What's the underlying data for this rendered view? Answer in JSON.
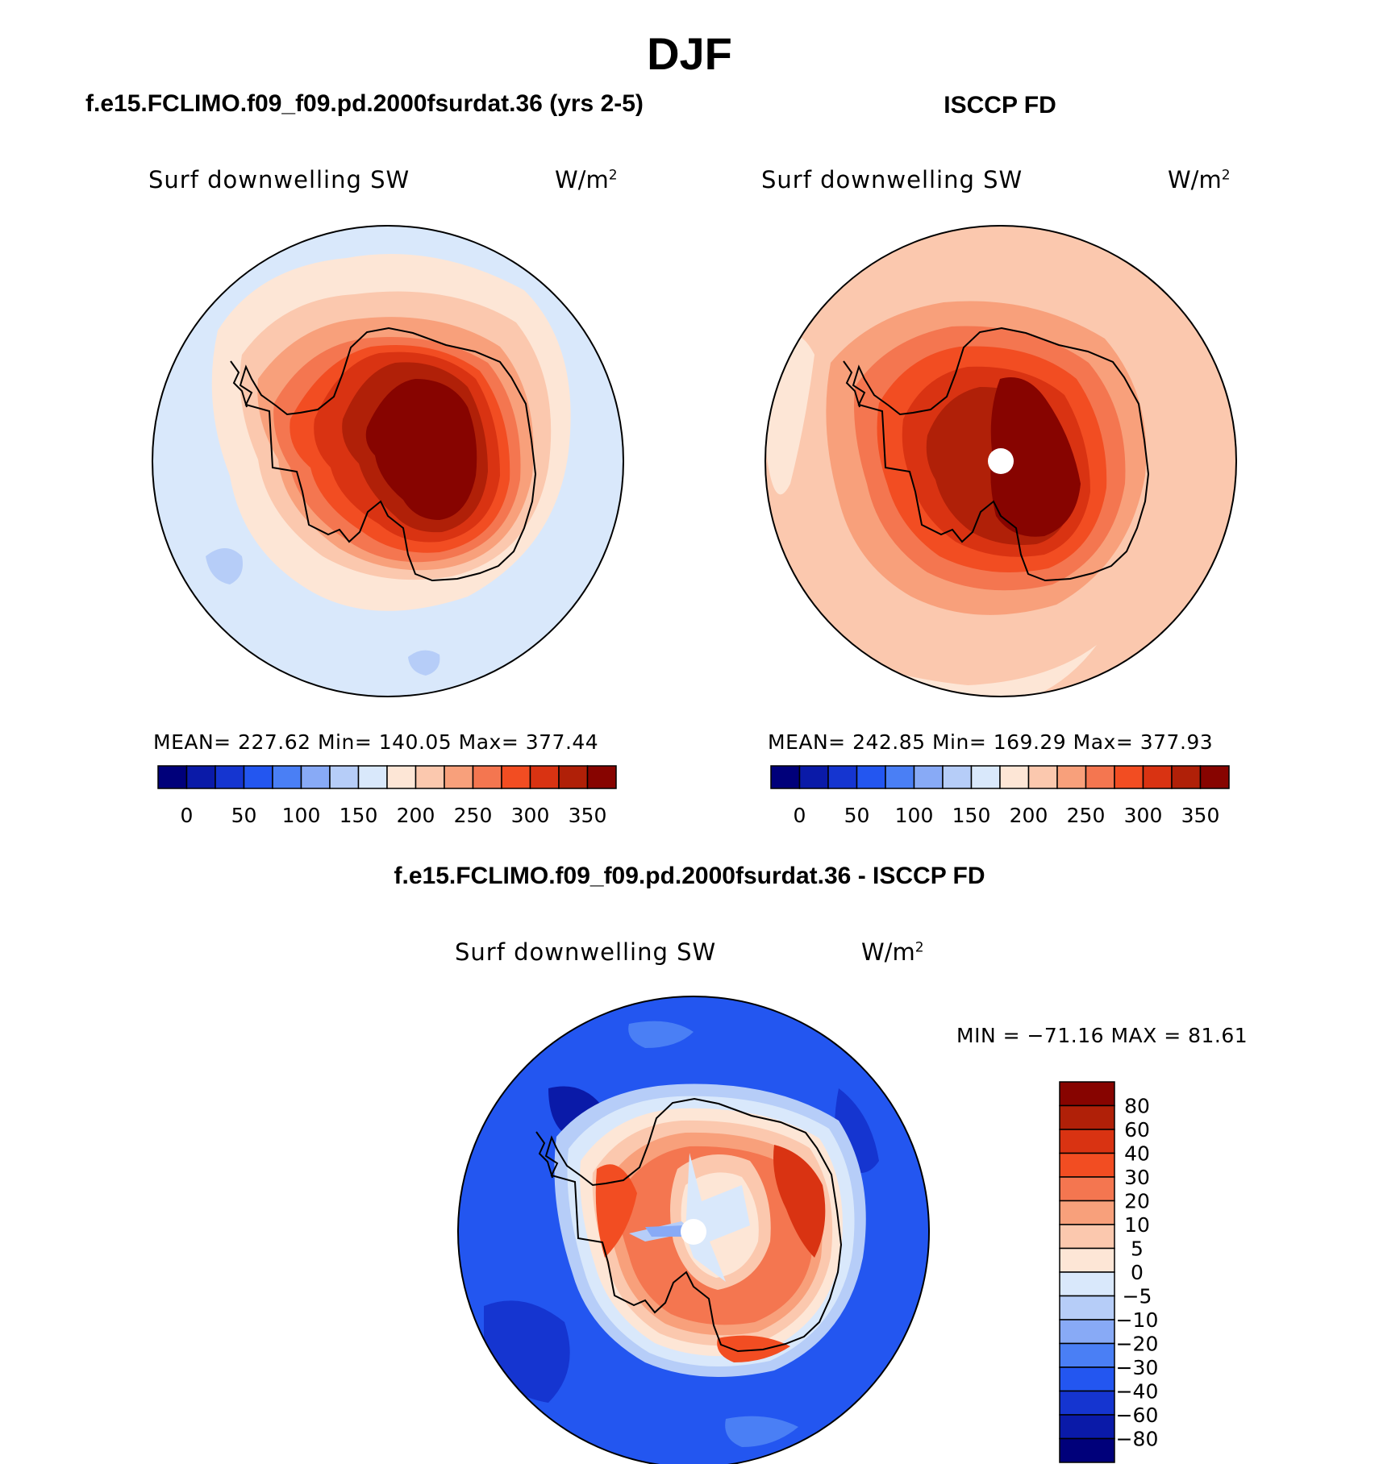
{
  "season": "DJF",
  "panels": [
    {
      "case_title": "f.e15.FCLIMO.f09_f09.pd.2000fsurdat.36 (yrs 2-5)",
      "variable": "Surf downwelling SW",
      "units_base": "W/m",
      "units_exp": "2",
      "stats": "MEAN= 227.62   Min= 140.05   Max= 377.44"
    },
    {
      "case_title": "ISCCP FD",
      "variable": "Surf downwelling SW",
      "units_base": "W/m",
      "units_exp": "2",
      "stats": "MEAN= 242.85   Min= 169.29   Max= 377.93"
    }
  ],
  "diff_panel": {
    "title": "f.e15.FCLIMO.f09_f09.pd.2000fsurdat.36 - ISCCP FD",
    "variable": "Surf downwelling SW",
    "units_base": "W/m",
    "units_exp": "2",
    "stats": "MIN = −71.16 MAX =  81.61"
  },
  "colors": {
    "abs_scale": [
      "#00007a",
      "#0a1aa8",
      "#1535d0",
      "#2356f0",
      "#4a7ff5",
      "#88aaf6",
      "#b6cdf8",
      "#d9e8fb",
      "#fde6d6",
      "#fbc8ae",
      "#f8a07b",
      "#f47650",
      "#f24d22",
      "#d93312",
      "#b02008",
      "#870400"
    ],
    "diff_scale": [
      "#00007a",
      "#0a1aa8",
      "#1535d0",
      "#2356f0",
      "#4a7ff5",
      "#88aaf6",
      "#b6cdf8",
      "#d9e8fb",
      "#fde6d6",
      "#fbc8ae",
      "#f8a07b",
      "#f47650",
      "#f24d22",
      "#d93312",
      "#b02008",
      "#870400"
    ]
  },
  "chart_data": [
    {
      "type": "heatmap",
      "projection": "south-polar-stereographic",
      "title": "f.e15.FCLIMO.f09_f09.pd.2000fsurdat.36 (yrs 2-5)",
      "variable": "Surf downwelling SW",
      "units": "W/m2",
      "mean": 227.62,
      "min": 140.05,
      "max": 377.44,
      "colorbar_levels": [
        0,
        25,
        50,
        75,
        100,
        125,
        150,
        175,
        200,
        225,
        250,
        275,
        300,
        325,
        350
      ],
      "colorbar_tick_labels": [
        "0",
        "50",
        "100",
        "150",
        "200",
        "250",
        "300",
        "350"
      ],
      "field_approx": [
        {
          "region": "antarctic-interior",
          "value": 370
        },
        {
          "region": "antarctic-coast",
          "value": 300
        },
        {
          "region": "near-coast-ocean",
          "value": 220
        },
        {
          "region": "open-ocean",
          "value": 170
        }
      ]
    },
    {
      "type": "heatmap",
      "projection": "south-polar-stereographic",
      "title": "ISCCP FD",
      "variable": "Surf downwelling SW",
      "units": "W/m2",
      "mean": 242.85,
      "min": 169.29,
      "max": 377.93,
      "colorbar_levels": [
        0,
        25,
        50,
        75,
        100,
        125,
        150,
        175,
        200,
        225,
        250,
        275,
        300,
        325,
        350
      ],
      "colorbar_tick_labels": [
        "0",
        "50",
        "100",
        "150",
        "200",
        "250",
        "300",
        "350"
      ],
      "field_approx": [
        {
          "region": "antarctic-interior",
          "value": 370
        },
        {
          "region": "antarctic-coast",
          "value": 300
        },
        {
          "region": "near-coast-ocean",
          "value": 250
        },
        {
          "region": "open-ocean",
          "value": 210
        }
      ]
    },
    {
      "type": "heatmap",
      "projection": "south-polar-stereographic",
      "title": "f.e15.FCLIMO.f09_f09.pd.2000fsurdat.36 - ISCCP FD",
      "variable": "Surf downwelling SW",
      "units": "W/m2",
      "min": -71.16,
      "max": 81.61,
      "colorbar_levels": [
        -80,
        -60,
        -40,
        -30,
        -20,
        -10,
        -5,
        0,
        5,
        10,
        20,
        30,
        40,
        60,
        80
      ],
      "colorbar_tick_labels": [
        "80",
        "60",
        "40",
        "30",
        "20",
        "10",
        "5",
        "0",
        "−5",
        "−10",
        "−20",
        "−30",
        "−40",
        "−60",
        "−80"
      ],
      "field_approx": [
        {
          "region": "antarctic-interior",
          "value": 0
        },
        {
          "region": "antarctic-coast",
          "value": 40
        },
        {
          "region": "open-ocean",
          "value": -40
        }
      ]
    }
  ]
}
